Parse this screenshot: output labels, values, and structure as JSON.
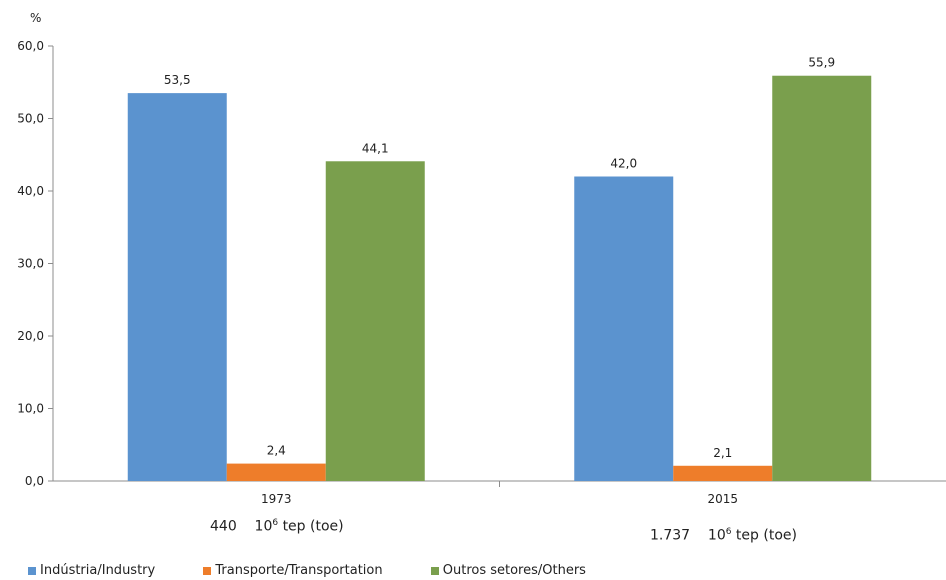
{
  "chart_data": {
    "type": "bar",
    "ylabel": "%",
    "categories": [
      "1973",
      "2015"
    ],
    "series": [
      {
        "name": "Indústria/Industry",
        "values": [
          53.5,
          42.0
        ],
        "labels": [
          "53,5",
          "42,0"
        ],
        "color": "#5b93cf"
      },
      {
        "name": "Transporte/Transportation",
        "values": [
          2.4,
          2.1
        ],
        "labels": [
          "2,4",
          "2,1"
        ],
        "color": "#ee7d2a"
      },
      {
        "name": "Outros setores/Others",
        "values": [
          44.1,
          55.9
        ],
        "labels": [
          "44,1",
          "55,9"
        ],
        "color": "#7a9f4d"
      }
    ],
    "ylim": [
      0,
      60
    ],
    "yticks": [
      "0,0",
      "10,0",
      "20,0",
      "30,0",
      "40,0",
      "50,0",
      "60,0"
    ],
    "grid": false,
    "legend_position": "bottom-left",
    "totals": [
      {
        "value": "440",
        "unit_base": "10",
        "unit_exp": "6",
        "unit_suffix": "tep (toe)"
      },
      {
        "value": "1.737",
        "unit_base": "10",
        "unit_exp": "6",
        "unit_suffix": "tep (toe)"
      }
    ]
  }
}
